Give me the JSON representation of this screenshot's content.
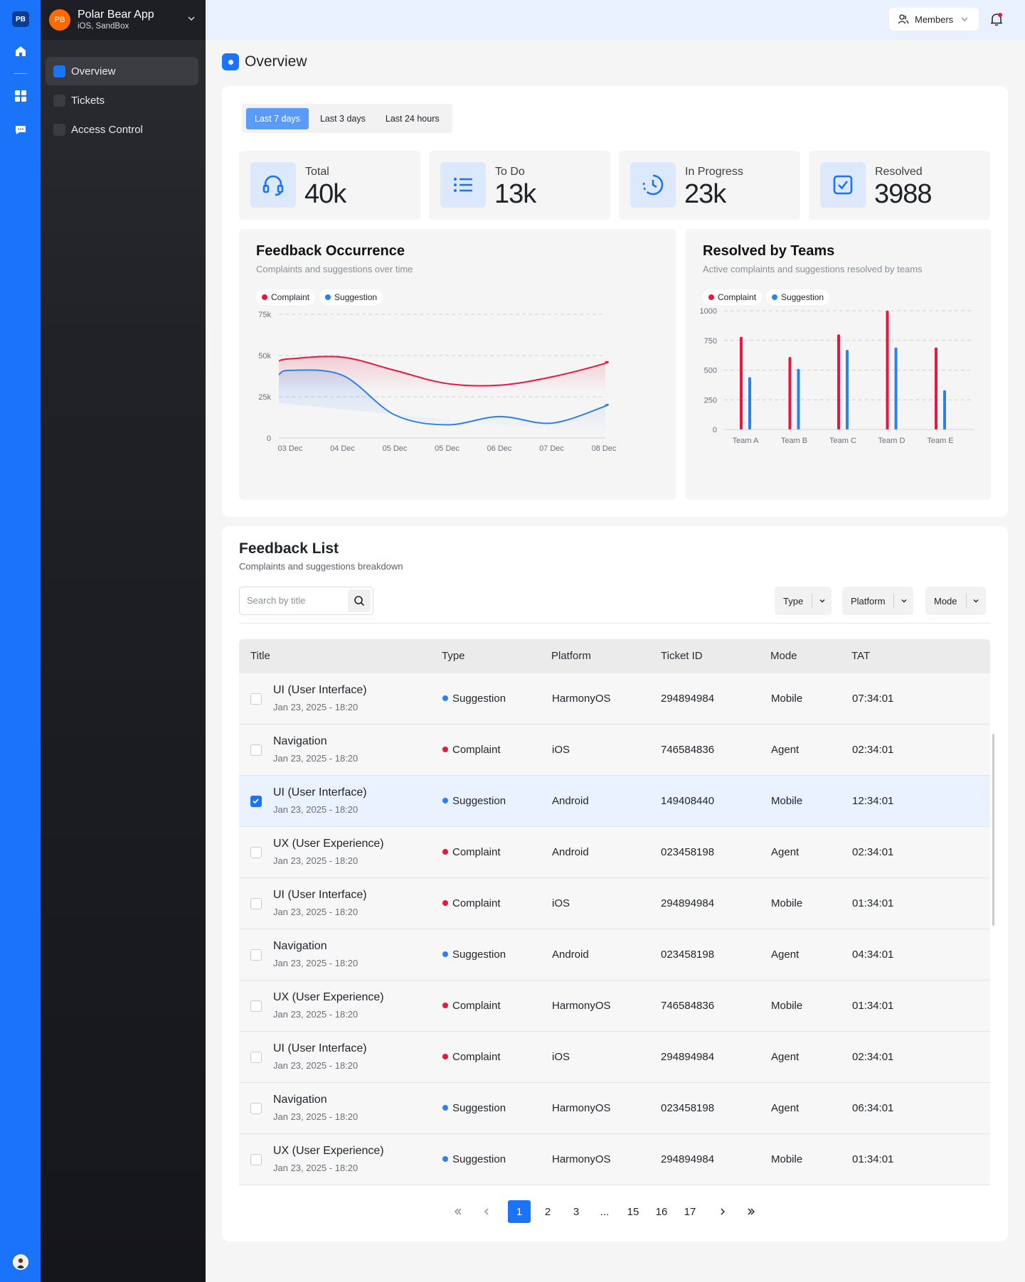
{
  "rail": {
    "logo": "PB"
  },
  "sidebar": {
    "app_initials": "PB",
    "app_name": "Polar Bear App",
    "app_env": "iOS, SandBox",
    "items": [
      {
        "label": "Overview",
        "active": true
      },
      {
        "label": "Tickets",
        "active": false
      },
      {
        "label": "Access Control",
        "active": false
      }
    ]
  },
  "topbar": {
    "members_label": "Members"
  },
  "page": {
    "title": "Overview"
  },
  "tabs": [
    {
      "label": "Last 7 days",
      "active": true
    },
    {
      "label": "Last 3 days",
      "active": false
    },
    {
      "label": "Last 24 hours",
      "active": false
    }
  ],
  "stats": [
    {
      "label": "Total",
      "value": "40k",
      "icon": "headset-icon"
    },
    {
      "label": "To Do",
      "value": "13k",
      "icon": "list-icon"
    },
    {
      "label": "In Progress",
      "value": "23k",
      "icon": "clock-icon"
    },
    {
      "label": "Resolved",
      "value": "3988",
      "icon": "checkbox-icon"
    }
  ],
  "colors": {
    "complaint": "#e8173f",
    "suggestion": "#2f80ed",
    "accent": "#1a73f8"
  },
  "chart_data": [
    {
      "type": "line",
      "title": "Feedback Occurrence",
      "subtitle": "Complaints and suggestions over time",
      "legend": [
        "Complaint",
        "Suggestion"
      ],
      "categories": [
        "03 Dec",
        "04 Dec",
        "05 Dec",
        "05 Dec",
        "06 Dec",
        "07 Dec",
        "08 Dec"
      ],
      "y_ticks": [
        "0",
        "25k",
        "50k",
        "75k"
      ],
      "ylim": [
        0,
        75000
      ],
      "series": [
        {
          "name": "Complaint",
          "values": [
            48000,
            49000,
            41000,
            33000,
            32000,
            37000,
            45000
          ]
        },
        {
          "name": "Suggestion",
          "values": [
            41000,
            38000,
            14000,
            8000,
            13000,
            9000,
            19000
          ]
        }
      ]
    },
    {
      "type": "bar",
      "title": "Resolved by Teams",
      "subtitle": "Active complaints and suggestions resolved by teams",
      "legend": [
        "Complaint",
        "Suggestion"
      ],
      "categories": [
        "Team A",
        "Team B",
        "Team C",
        "Team D",
        "Team E"
      ],
      "y_ticks": [
        "0",
        "250",
        "500",
        "750",
        "1000"
      ],
      "ylim": [
        0,
        1000
      ],
      "series": [
        {
          "name": "Complaint",
          "values": [
            780,
            610,
            800,
            1000,
            690
          ]
        },
        {
          "name": "Suggestion",
          "values": [
            440,
            510,
            670,
            690,
            330
          ]
        }
      ]
    }
  ],
  "feedback": {
    "title": "Feedback List",
    "subtitle": "Complaints and suggestions breakdown",
    "search_placeholder": "Search by title",
    "filters": [
      "Type",
      "Platform",
      "Mode"
    ],
    "columns": [
      "Title",
      "Type",
      "Platform",
      "Ticket ID",
      "Mode",
      "TAT"
    ],
    "rows": [
      {
        "title": "UI (User Interface)",
        "date": "Jan 23, 2025 - 18:20",
        "type": "Suggestion",
        "platform": "HarmonyOS",
        "ticket": "294894984",
        "mode": "Mobile",
        "tat": "07:34:01",
        "checked": false
      },
      {
        "title": "Navigation",
        "date": "Jan 23, 2025 - 18:20",
        "type": "Complaint",
        "platform": "iOS",
        "ticket": "746584836",
        "mode": "Agent",
        "tat": "02:34:01",
        "checked": false
      },
      {
        "title": "UI (User Interface)",
        "date": "Jan 23, 2025 - 18:20",
        "type": "Suggestion",
        "platform": "Android",
        "ticket": "149408440",
        "mode": "Mobile",
        "tat": "12:34:01",
        "checked": true
      },
      {
        "title": "UX (User Experience)",
        "date": "Jan 23, 2025 - 18:20",
        "type": "Complaint",
        "platform": "Android",
        "ticket": "023458198",
        "mode": "Agent",
        "tat": "02:34:01",
        "checked": false
      },
      {
        "title": "UI (User Interface)",
        "date": "Jan 23, 2025 - 18:20",
        "type": "Complaint",
        "platform": "iOS",
        "ticket": "294894984",
        "mode": "Mobile",
        "tat": "01:34:01",
        "checked": false
      },
      {
        "title": "Navigation",
        "date": "Jan 23, 2025 - 18:20",
        "type": "Suggestion",
        "platform": "Android",
        "ticket": "023458198",
        "mode": "Agent",
        "tat": "04:34:01",
        "checked": false
      },
      {
        "title": "UX (User Experience)",
        "date": "Jan 23, 2025 - 18:20",
        "type": "Complaint",
        "platform": "HarmonyOS",
        "ticket": "746584836",
        "mode": "Mobile",
        "tat": "01:34:01",
        "checked": false
      },
      {
        "title": "UI (User Interface)",
        "date": "Jan 23, 2025 - 18:20",
        "type": "Complaint",
        "platform": "iOS",
        "ticket": "294894984",
        "mode": "Agent",
        "tat": "02:34:01",
        "checked": false
      },
      {
        "title": "Navigation",
        "date": "Jan 23, 2025 - 18:20",
        "type": "Suggestion",
        "platform": "HarmonyOS",
        "ticket": "023458198",
        "mode": "Agent",
        "tat": "06:34:01",
        "checked": false
      },
      {
        "title": "UX (User Experience)",
        "date": "Jan 23, 2025 - 18:20",
        "type": "Suggestion",
        "platform": "HarmonyOS",
        "ticket": "294894984",
        "mode": "Mobile",
        "tat": "01:34:01",
        "checked": false
      }
    ]
  },
  "pagination": {
    "pages": [
      "1",
      "2",
      "3",
      "...",
      "15",
      "16",
      "17"
    ],
    "current": "1"
  }
}
